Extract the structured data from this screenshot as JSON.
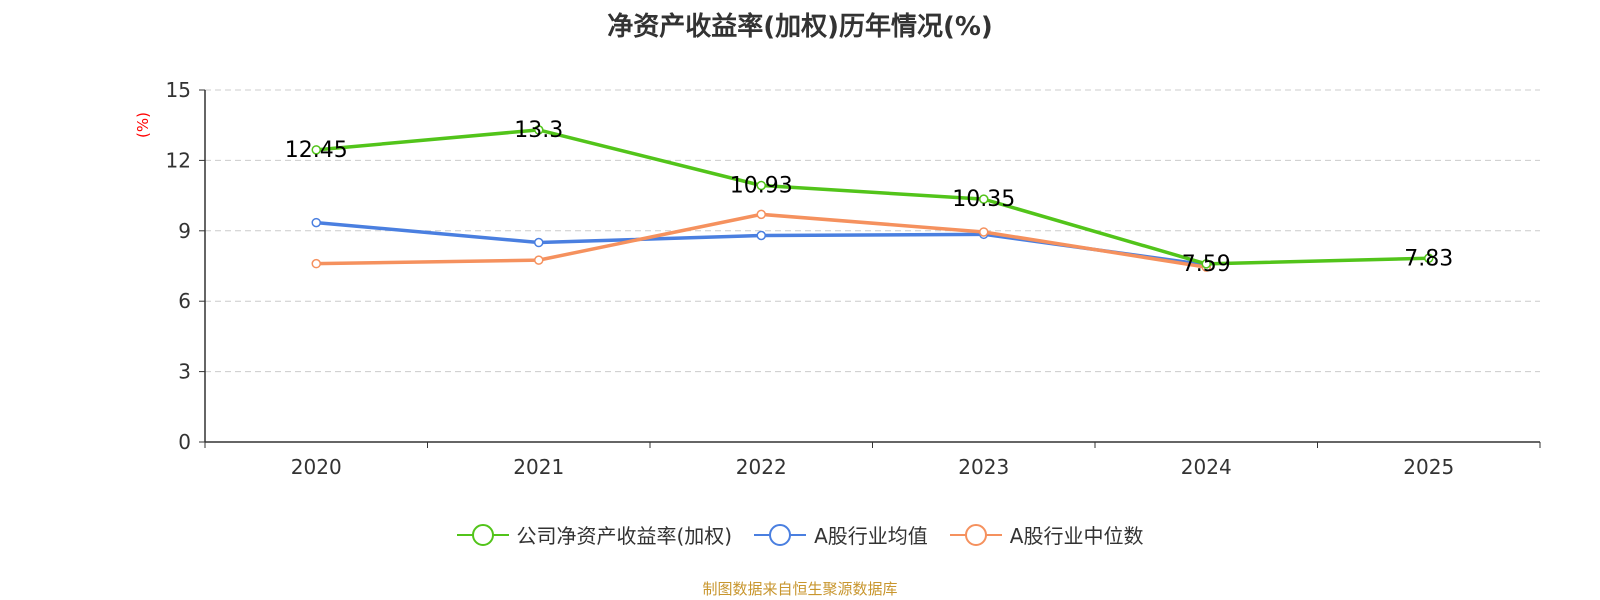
{
  "chart_data": {
    "type": "line",
    "title": "净资产收益率(加权)历年情况(%)",
    "ylabel": "(%)",
    "xlabel": "",
    "categories": [
      "2020",
      "2021",
      "2022",
      "2023",
      "2024",
      "2025"
    ],
    "ylim": [
      0,
      15
    ],
    "yticks": [
      0,
      3,
      6,
      9,
      12,
      15
    ],
    "grid": true,
    "legend_position": "bottom",
    "series": [
      {
        "name": "公司净资产收益率(加权)",
        "color": "#52c41a",
        "values": [
          12.45,
          13.3,
          10.93,
          10.35,
          7.59,
          7.83
        ],
        "labels": [
          "12.45",
          "13.3",
          "10.93",
          "10.35",
          "7.59",
          "7.83"
        ]
      },
      {
        "name": "A股行业均值",
        "color": "#4a7fe0",
        "values": [
          9.35,
          8.5,
          8.8,
          8.85,
          7.55,
          null
        ]
      },
      {
        "name": "A股行业中位数",
        "color": "#f5915e",
        "values": [
          7.6,
          7.75,
          9.7,
          8.95,
          7.45,
          null
        ]
      }
    ]
  },
  "source": "制图数据来自恒生聚源数据库",
  "colors": {
    "axis": "#333333",
    "grid": "#cccccc",
    "ylabel": "#ff0000"
  }
}
